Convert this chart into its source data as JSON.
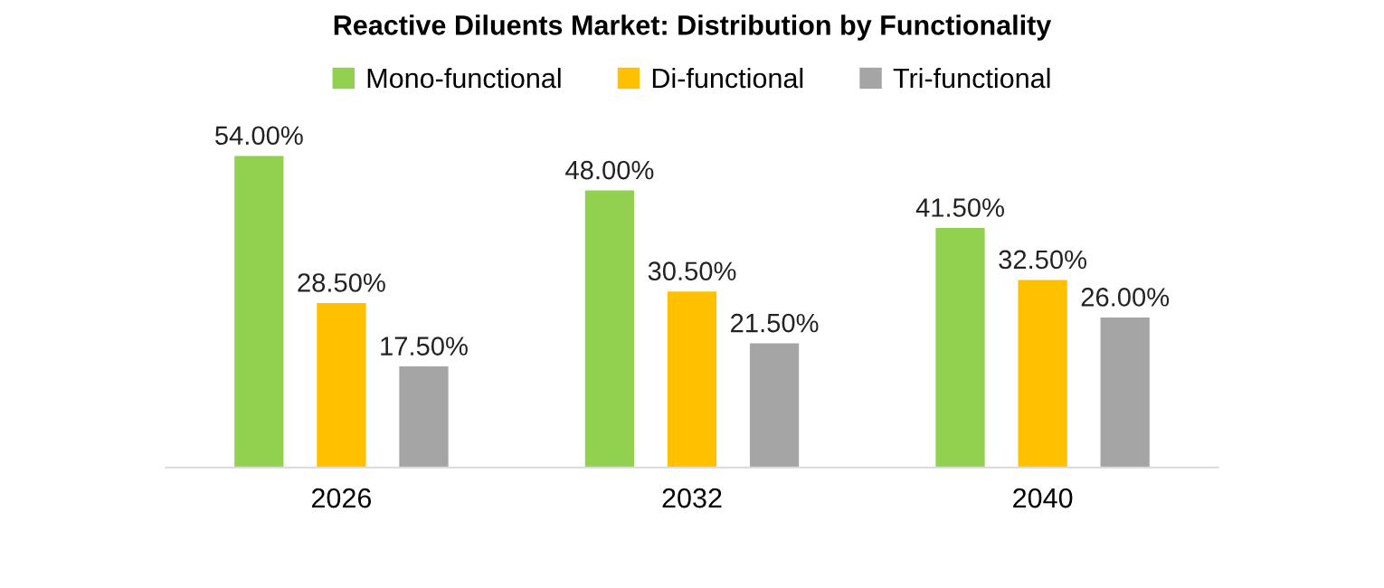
{
  "chart_data": {
    "type": "bar",
    "title": "Reactive Diluents Market: Distribution by Functionality",
    "categories": [
      "2026",
      "2032",
      "2040"
    ],
    "series": [
      {
        "name": "Mono-functional",
        "color": "#92d050",
        "values": [
          54.0,
          48.0,
          41.5
        ],
        "value_labels": [
          "54.00%",
          "48.00%",
          "41.50%"
        ]
      },
      {
        "name": "Di-functional",
        "color": "#ffc000",
        "values": [
          28.5,
          30.5,
          32.5
        ],
        "value_labels": [
          "28.50%",
          "30.50%",
          "32.50%"
        ]
      },
      {
        "name": "Tri-functional",
        "color": "#a5a5a5",
        "values": [
          17.5,
          21.5,
          26.0
        ],
        "value_labels": [
          "17.50%",
          "21.50%",
          "26.00%"
        ]
      }
    ],
    "legend": "top",
    "grid": false
  }
}
